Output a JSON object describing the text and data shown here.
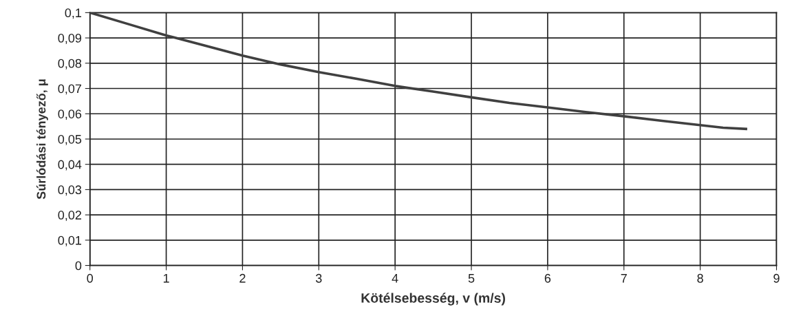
{
  "chart_data": {
    "type": "line",
    "xlabel": "Kötélsebesség, v (m/s)",
    "ylabel": "Súrlódási tényező, μ",
    "x": [
      0,
      0.5,
      1,
      1.5,
      2,
      2.5,
      3,
      3.5,
      4,
      4.5,
      5,
      5.5,
      6,
      6.5,
      7,
      7.5,
      8,
      8.3,
      8.6
    ],
    "series": [
      {
        "color": "#404040",
        "values": [
          0.1,
          0.0955,
          0.091,
          0.087,
          0.083,
          0.0795,
          0.0765,
          0.0738,
          0.071,
          0.0688,
          0.0665,
          0.0643,
          0.0625,
          0.0607,
          0.059,
          0.0572,
          0.0555,
          0.0545,
          0.054
        ]
      }
    ],
    "xlim": [
      0,
      9
    ],
    "xticks": [
      0,
      1,
      2,
      3,
      4,
      5,
      6,
      7,
      8,
      9
    ],
    "ylim": [
      0,
      0.1
    ],
    "yticks": [
      0,
      {
        "value": 0.01,
        "label": "0,01"
      },
      {
        "value": 0.02,
        "label": "0,02"
      },
      {
        "value": 0.03,
        "label": "0,03"
      },
      {
        "value": 0.04,
        "label": "0,04"
      },
      {
        "value": 0.05,
        "label": "0,05"
      },
      {
        "value": 0.06,
        "label": "0,06"
      },
      {
        "value": 0.07,
        "label": "0,07"
      },
      {
        "value": 0.08,
        "label": "0,08"
      },
      {
        "value": 0.09,
        "label": "0,09"
      },
      {
        "value": 0.1,
        "label": "0,1"
      }
    ],
    "grid": true,
    "legend": false,
    "marker": "none",
    "line_style": "solid"
  }
}
